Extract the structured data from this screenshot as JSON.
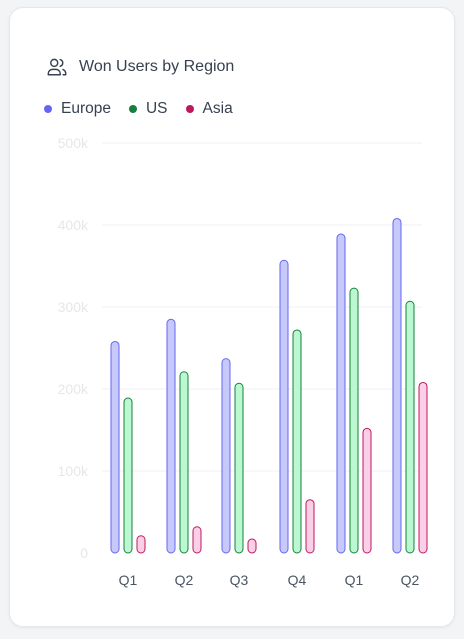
{
  "card": {
    "title": "Won Users by Region",
    "icon": "users-icon"
  },
  "colors": {
    "europe_fill": "#c7c9fb",
    "europe_stroke": "#6366f1",
    "us_fill": "#bbf7d0",
    "us_stroke": "#15803d",
    "asia_fill": "#fbcfe8",
    "asia_stroke": "#be185d"
  },
  "chart_data": {
    "type": "bar",
    "title": "Won Users by Region",
    "categories": [
      "Q1",
      "Q2",
      "Q3",
      "Q4",
      "Q1",
      "Q2"
    ],
    "series": [
      {
        "name": "Europe",
        "color": "#6366f1",
        "values": [
          258000,
          285000,
          237000,
          357000,
          389000,
          408000
        ]
      },
      {
        "name": "US",
        "color": "#15803d",
        "values": [
          189000,
          221000,
          207000,
          272000,
          323000,
          307000
        ]
      },
      {
        "name": "Asia",
        "color": "#be185d",
        "values": [
          21000,
          32000,
          17000,
          65000,
          152000,
          208000
        ]
      }
    ],
    "ylim": [
      0,
      500000
    ],
    "yticks": [
      0,
      100000,
      200000,
      300000,
      400000,
      500000
    ],
    "ytick_labels": [
      "0",
      "100k",
      "200k",
      "300k",
      "400k",
      "500k"
    ],
    "grid": true,
    "legend": "top-left"
  }
}
